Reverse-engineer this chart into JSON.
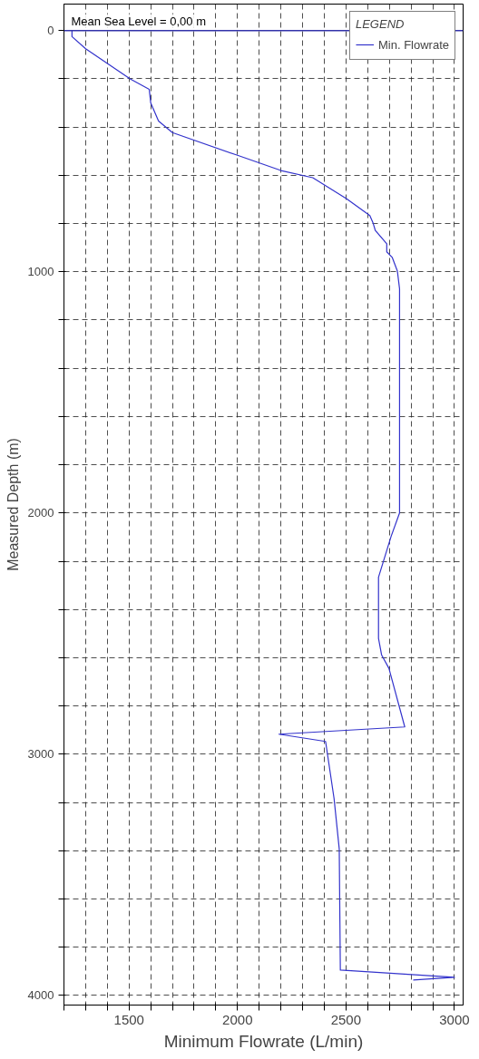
{
  "chart_data": {
    "type": "line",
    "xlabel": "Minimum Flowrate (L/min)",
    "ylabel": "Measured Depth (m)",
    "legend_title": "LEGEND",
    "series": [
      {
        "name": "Min. Flowrate",
        "color": "#3333cc",
        "x": [
          1237,
          1237,
          1300,
          1505,
          1593,
          1600,
          1636,
          1700,
          2000,
          2200,
          2347,
          2503,
          2610,
          2625,
          2635,
          2688,
          2688,
          2713,
          2737,
          2747,
          2747,
          2708,
          2650,
          2650,
          2664,
          2698,
          2771,
          2191,
          2406,
          2445,
          2469,
          2474,
          3000,
          2810
        ],
        "values": [
          0,
          25,
          75,
          200,
          243,
          300,
          375,
          423,
          517,
          580,
          610,
          697,
          767,
          798,
          828,
          884,
          917,
          940,
          997,
          1071,
          2000,
          2097,
          2266,
          2520,
          2588,
          2644,
          2887,
          2917,
          2947,
          3183,
          3393,
          3895,
          3925,
          3936
        ]
      }
    ],
    "xlim": [
      1200,
      3040
    ],
    "ylim": [
      4040,
      -110
    ],
    "xticks": [
      {
        "value": 1200,
        "label": null
      },
      {
        "value": 1300,
        "label": null
      },
      {
        "value": 1400,
        "label": null
      },
      1500,
      {
        "value": 1600,
        "label": null
      },
      {
        "value": 1700,
        "label": null
      },
      {
        "value": 1800,
        "label": null
      },
      {
        "value": 1900,
        "label": null
      },
      2000,
      {
        "value": 2100,
        "label": null
      },
      {
        "value": 2200,
        "label": null
      },
      {
        "value": 2300,
        "label": null
      },
      {
        "value": 2400,
        "label": null
      },
      2500,
      {
        "value": 2600,
        "label": null
      },
      {
        "value": 2700,
        "label": null
      },
      {
        "value": 2800,
        "label": null
      },
      {
        "value": 2900,
        "label": null
      },
      3000
    ],
    "yticks": [
      0,
      {
        "value": 200,
        "label": null
      },
      {
        "value": 400,
        "label": null
      },
      {
        "value": 600,
        "label": null
      },
      {
        "value": 800,
        "label": null
      },
      1000,
      {
        "value": 1200,
        "label": null
      },
      {
        "value": 1400,
        "label": null
      },
      {
        "value": 1600,
        "label": null
      },
      {
        "value": 1800,
        "label": null
      },
      2000,
      {
        "value": 2200,
        "label": null
      },
      {
        "value": 2400,
        "label": null
      },
      {
        "value": 2600,
        "label": null
      },
      {
        "value": 2800,
        "label": null
      },
      3000,
      {
        "value": 3200,
        "label": null
      },
      {
        "value": 3400,
        "label": null
      },
      {
        "value": 3600,
        "label": null
      },
      {
        "value": 3800,
        "label": null
      },
      4000
    ],
    "ref_lines": [
      {
        "axis": "y",
        "value": 0,
        "label": "Mean Sea Level = 0,00 m",
        "color": "#3333aa"
      }
    ],
    "grid": true,
    "legend": "top right",
    "line_style": "solid"
  }
}
